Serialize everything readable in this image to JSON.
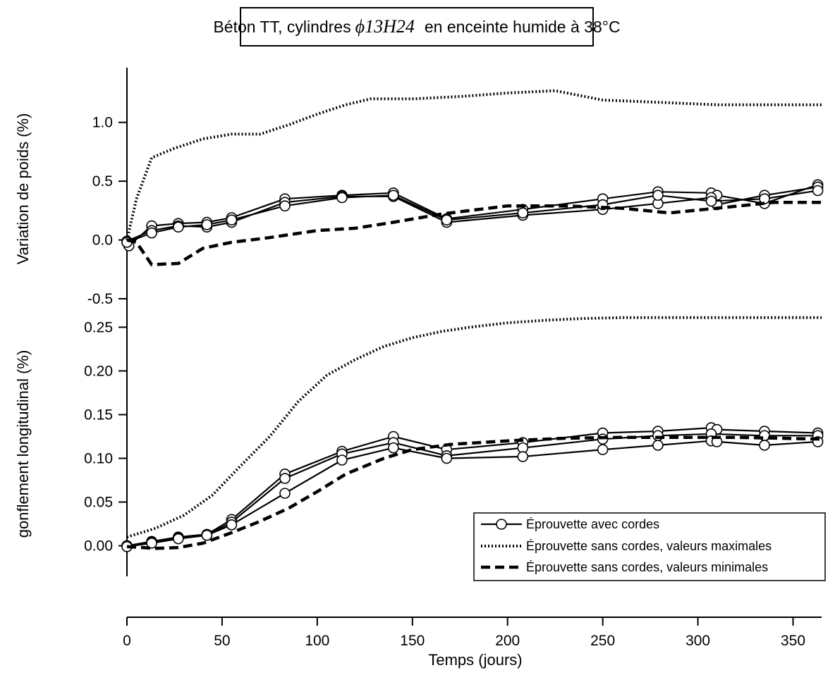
{
  "chart_data": [
    {
      "panel": "top",
      "type": "line",
      "title": {
        "prefix": "Béton TT, cylindres",
        "symbol": "ϕ13H24",
        "suffix": "en enceinte humide à 38°C"
      },
      "ylabel": "Variation de poids (%)",
      "xlabel": "",
      "xlim": [
        0,
        365
      ],
      "ylim": [
        -0.5,
        1.25
      ],
      "yticks": [
        -0.5,
        0.0,
        0.5,
        1.0
      ],
      "ytick_labels": [
        "-0.5",
        "0.0",
        "0.5",
        "1.0"
      ],
      "grid": false,
      "series": [
        {
          "style": "circle-line",
          "x": [
            0,
            1,
            13,
            27,
            42,
            55,
            83,
            113,
            140,
            168,
            208,
            250,
            279,
            307,
            310,
            335,
            363
          ],
          "y": [
            -0.02,
            -0.05,
            0.12,
            0.14,
            0.15,
            0.19,
            0.35,
            0.38,
            0.4,
            0.18,
            0.26,
            0.35,
            0.41,
            0.4,
            0.38,
            0.31,
            0.47
          ]
        },
        {
          "style": "circle-line",
          "x": [
            0,
            13,
            27,
            42,
            55,
            83,
            113,
            140,
            168,
            208,
            250,
            279,
            307,
            310,
            335,
            363
          ],
          "y": [
            -0.01,
            0.08,
            0.12,
            0.11,
            0.15,
            0.32,
            0.37,
            0.37,
            0.15,
            0.21,
            0.26,
            0.31,
            0.36,
            0.3,
            0.38,
            0.45
          ]
        },
        {
          "style": "circle-line",
          "x": [
            0,
            13,
            27,
            42,
            55,
            83,
            113,
            140,
            168,
            208,
            250,
            279,
            307,
            335,
            363
          ],
          "y": [
            -0.02,
            0.06,
            0.11,
            0.13,
            0.17,
            0.29,
            0.36,
            0.38,
            0.17,
            0.23,
            0.3,
            0.38,
            0.33,
            0.35,
            0.42
          ]
        },
        {
          "style": "dotted",
          "x": [
            0,
            5,
            13,
            25,
            40,
            55,
            70,
            85,
            100,
            115,
            128,
            150,
            175,
            200,
            225,
            250,
            280,
            310,
            340,
            365
          ],
          "y": [
            0.0,
            0.35,
            0.7,
            0.78,
            0.86,
            0.9,
            0.9,
            0.98,
            1.07,
            1.15,
            1.2,
            1.2,
            1.22,
            1.25,
            1.27,
            1.19,
            1.17,
            1.15,
            1.15,
            1.15
          ]
        },
        {
          "style": "dashed",
          "x": [
            0,
            5,
            13,
            27,
            40,
            55,
            75,
            100,
            120,
            140,
            165,
            200,
            230,
            260,
            285,
            310,
            340,
            365
          ],
          "y": [
            0.0,
            -0.02,
            -0.21,
            -0.2,
            -0.07,
            -0.02,
            0.02,
            0.08,
            0.1,
            0.15,
            0.22,
            0.29,
            0.29,
            0.27,
            0.23,
            0.27,
            0.32,
            0.32
          ]
        }
      ]
    },
    {
      "panel": "bottom",
      "type": "line",
      "ylabel": "gonflement longitudinal (%)",
      "xlabel": "Temps (jours)",
      "xlim": [
        0,
        365
      ],
      "ylim": [
        -0.035,
        0.26
      ],
      "xticks": [
        0,
        50,
        100,
        150,
        200,
        250,
        300,
        350
      ],
      "xtick_labels": [
        "0",
        "50",
        "100",
        "150",
        "200",
        "250",
        "300",
        "350"
      ],
      "yticks": [
        0.0,
        0.05,
        0.1,
        0.15,
        0.2,
        0.25
      ],
      "ytick_labels": [
        "0.00",
        "0.05",
        "0.10",
        "0.15",
        "0.20",
        "0.25"
      ],
      "grid": false,
      "legend": {
        "placement": "bottom-right",
        "entries": [
          {
            "label": "Éprouvette avec cordes",
            "style": "circle-line"
          },
          {
            "label": "Éprouvette sans cordes, valeurs maximales",
            "style": "dotted"
          },
          {
            "label": "Éprouvette sans cordes, valeurs minimales",
            "style": "dashed"
          }
        ]
      },
      "series": [
        {
          "style": "circle-line",
          "x": [
            0,
            13,
            27,
            42,
            55,
            83,
            113,
            140,
            168,
            208,
            250,
            279,
            307,
            310,
            335,
            363
          ],
          "y": [
            0.0,
            0.005,
            0.01,
            0.013,
            0.03,
            0.082,
            0.108,
            0.125,
            0.11,
            0.118,
            0.129,
            0.131,
            0.135,
            0.133,
            0.131,
            0.129
          ]
        },
        {
          "style": "circle-line",
          "x": [
            0,
            13,
            27,
            42,
            55,
            83,
            113,
            140,
            168,
            208,
            250,
            279,
            307,
            335,
            363
          ],
          "y": [
            0.0,
            0.004,
            0.009,
            0.012,
            0.027,
            0.077,
            0.105,
            0.118,
            0.103,
            0.112,
            0.122,
            0.126,
            0.128,
            0.126,
            0.126
          ]
        },
        {
          "style": "circle-line",
          "x": [
            0,
            13,
            27,
            42,
            55,
            83,
            113,
            140,
            168,
            208,
            250,
            279,
            307,
            310,
            335,
            363
          ],
          "y": [
            -0.001,
            0.003,
            0.008,
            0.012,
            0.024,
            0.06,
            0.098,
            0.112,
            0.1,
            0.102,
            0.11,
            0.115,
            0.12,
            0.119,
            0.115,
            0.119
          ]
        },
        {
          "style": "dotted",
          "x": [
            0,
            15,
            30,
            45,
            60,
            75,
            90,
            105,
            120,
            135,
            150,
            165,
            180,
            200,
            220,
            240,
            260,
            290,
            320,
            365
          ],
          "y": [
            0.01,
            0.02,
            0.035,
            0.058,
            0.092,
            0.125,
            0.165,
            0.195,
            0.213,
            0.228,
            0.238,
            0.245,
            0.25,
            0.255,
            0.258,
            0.26,
            0.261,
            0.261,
            0.261,
            0.261
          ]
        },
        {
          "style": "dashed",
          "x": [
            0,
            15,
            27,
            40,
            55,
            70,
            85,
            100,
            115,
            135,
            150,
            170,
            200,
            230,
            260,
            290,
            320,
            365
          ],
          "y": [
            -0.001,
            -0.003,
            -0.002,
            0.003,
            0.015,
            0.028,
            0.043,
            0.062,
            0.082,
            0.1,
            0.11,
            0.116,
            0.12,
            0.123,
            0.124,
            0.124,
            0.124,
            0.122
          ]
        }
      ]
    }
  ]
}
